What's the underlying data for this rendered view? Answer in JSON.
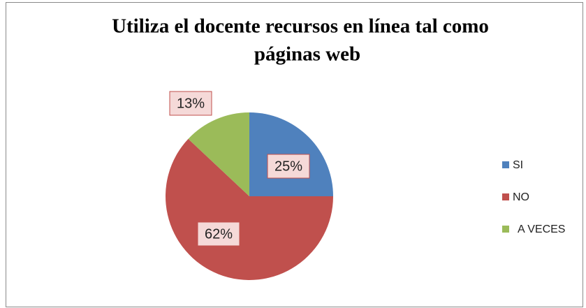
{
  "chart_data": {
    "type": "pie",
    "title": [
      "Utiliza el docente recursos en línea tal como",
      "páginas web"
    ],
    "categories": [
      "SI",
      "NO",
      "A VECES"
    ],
    "values": [
      25,
      62,
      13
    ],
    "value_labels": [
      "25%",
      "62%",
      "13%"
    ],
    "colors": [
      "#4f81bd",
      "#c0504d",
      "#9bbb59"
    ],
    "legend": "right"
  }
}
